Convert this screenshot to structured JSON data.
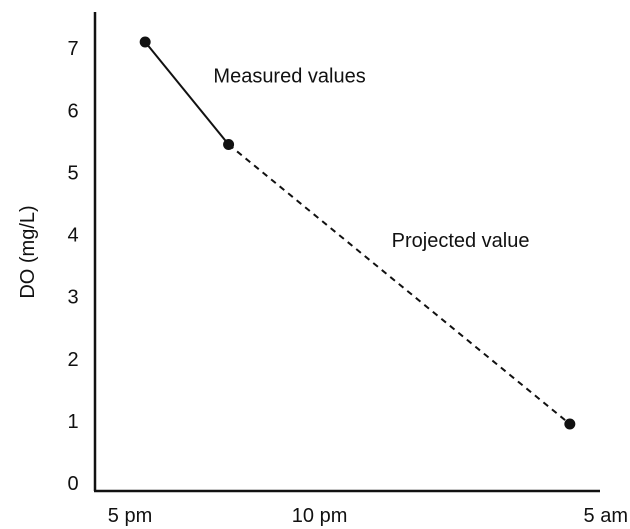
{
  "chart_data": {
    "type": "line",
    "title": "",
    "xlabel": "",
    "ylabel": "DO (mg/L)",
    "xlim": [
      17,
      29
    ],
    "ylim": [
      0,
      7.5
    ],
    "grid": false,
    "x_ticks": [
      {
        "value": 17,
        "label": "5 pm"
      },
      {
        "value": 22,
        "label": "10 pm"
      },
      {
        "value": 29,
        "label": "5 am"
      }
    ],
    "y_ticks": [
      {
        "value": 0,
        "label": "0"
      },
      {
        "value": 1,
        "label": "1"
      },
      {
        "value": 2,
        "label": "2"
      },
      {
        "value": 3,
        "label": "3"
      },
      {
        "value": 4,
        "label": "4"
      },
      {
        "value": 5,
        "label": "5"
      },
      {
        "value": 6,
        "label": "6"
      },
      {
        "value": 7,
        "label": "7"
      }
    ],
    "series": [
      {
        "style": "solid",
        "color": "#111111",
        "points": [
          {
            "x": 17.4,
            "y": 7.1
          },
          {
            "x": 19.6,
            "y": 5.45
          }
        ]
      },
      {
        "style": "dashed",
        "color": "#111111",
        "points": [
          {
            "x": 19.6,
            "y": 5.45
          },
          {
            "x": 28.6,
            "y": 0.95
          }
        ]
      }
    ],
    "annotations": [
      {
        "text": "Measured values",
        "x": 19.2,
        "y": 6.45
      },
      {
        "text": "Projected value",
        "x": 23.9,
        "y": 3.8
      }
    ]
  }
}
